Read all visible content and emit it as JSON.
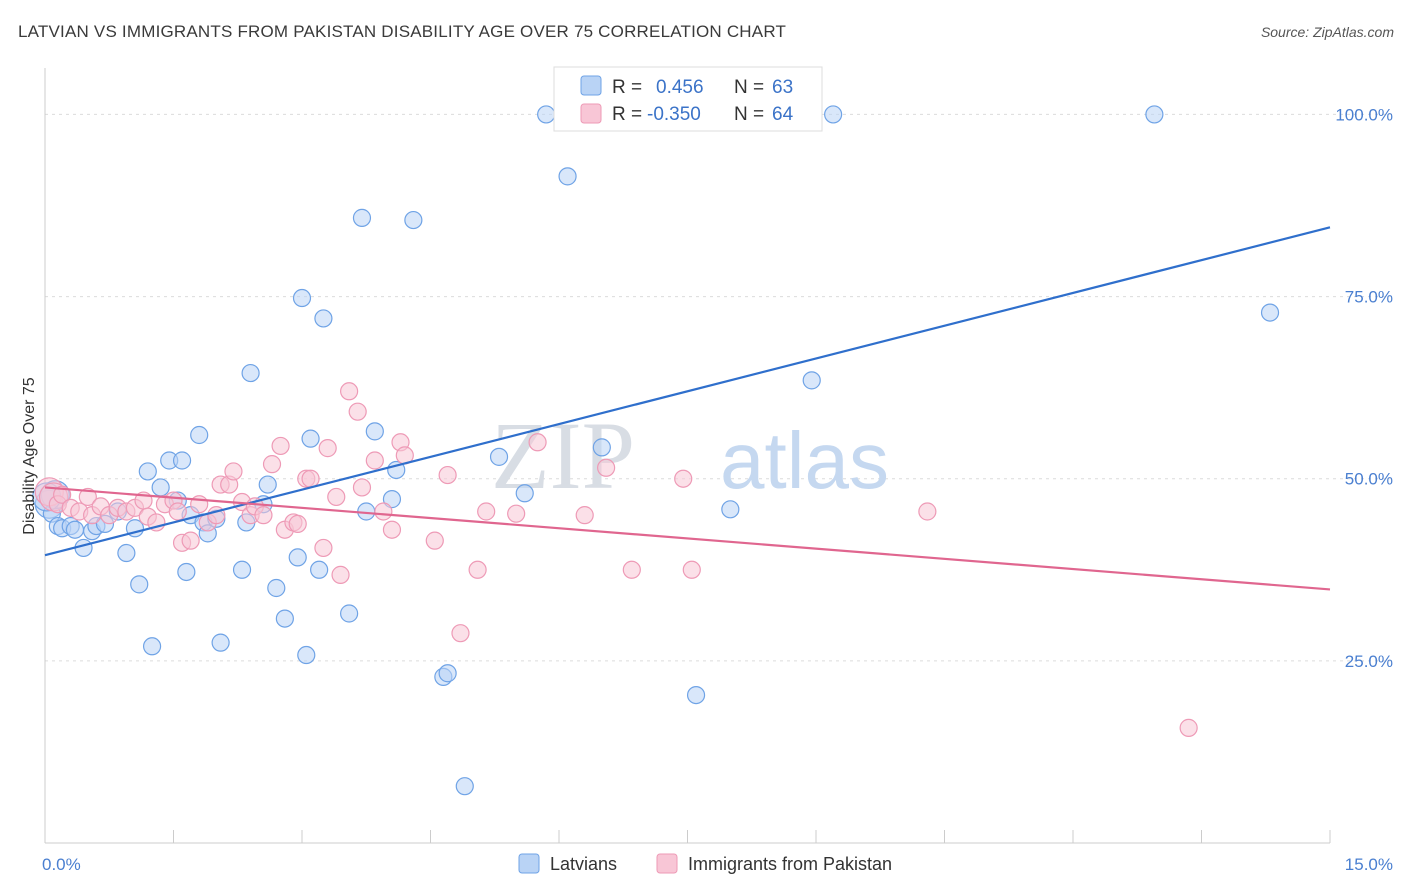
{
  "title": "LATVIAN VS IMMIGRANTS FROM PAKISTAN DISABILITY AGE OVER 75 CORRELATION CHART",
  "source": "Source: ZipAtlas.com",
  "watermark": {
    "zip": "ZIP",
    "atlas": "atlas"
  },
  "chart_data": {
    "type": "scatter",
    "ylabel": "Disability Age Over 75",
    "xlim": [
      0,
      15
    ],
    "ylim": [
      0,
      105
    ],
    "x_tick_labels": [
      {
        "value": 0,
        "label": "0.0%"
      },
      {
        "value": 15,
        "label": "15.0%"
      }
    ],
    "y_tick_labels": [
      {
        "value": 25,
        "label": "25.0%"
      },
      {
        "value": 50,
        "label": "50.0%"
      },
      {
        "value": 75,
        "label": "75.0%"
      },
      {
        "value": 100,
        "label": "100.0%"
      }
    ],
    "grid": "horizontal dashed",
    "legend": {
      "placement": "top-center",
      "entries": [
        {
          "r_label": "R =",
          "r_value": "0.456",
          "n_label": "N =",
          "n_value": "63"
        },
        {
          "r_label": "R =",
          "r_value": "-0.350",
          "n_label": "N =",
          "n_value": "64"
        }
      ]
    },
    "series": [
      {
        "name": "Latvians",
        "color": "#6fa3e6",
        "fill": "#b9d3f5",
        "trend": {
          "x": [
            0,
            15
          ],
          "y": [
            39.5,
            84.5
          ],
          "color": "#2f6fcc"
        },
        "points": [
          [
            0.05,
            46.5
          ],
          [
            0.08,
            45.2
          ],
          [
            0.12,
            47.8
          ],
          [
            0.15,
            43.5
          ],
          [
            0.2,
            43.2
          ],
          [
            0.3,
            43.5
          ],
          [
            0.35,
            43.0
          ],
          [
            0.45,
            40.5
          ],
          [
            0.55,
            42.8
          ],
          [
            0.6,
            43.5
          ],
          [
            0.7,
            43.8
          ],
          [
            0.85,
            45.5
          ],
          [
            0.95,
            39.8
          ],
          [
            1.05,
            43.2
          ],
          [
            1.1,
            35.5
          ],
          [
            1.2,
            51.0
          ],
          [
            1.25,
            27.0
          ],
          [
            1.35,
            48.8
          ],
          [
            1.45,
            52.5
          ],
          [
            1.55,
            47.0
          ],
          [
            1.6,
            52.5
          ],
          [
            1.65,
            37.2
          ],
          [
            1.7,
            45.0
          ],
          [
            1.8,
            56.0
          ],
          [
            1.85,
            44.0
          ],
          [
            1.9,
            42.5
          ],
          [
            2.0,
            44.5
          ],
          [
            2.05,
            27.5
          ],
          [
            2.3,
            37.5
          ],
          [
            2.35,
            44.0
          ],
          [
            2.4,
            64.5
          ],
          [
            2.55,
            46.5
          ],
          [
            2.6,
            49.2
          ],
          [
            2.7,
            35.0
          ],
          [
            2.8,
            30.8
          ],
          [
            2.95,
            39.2
          ],
          [
            3.0,
            74.8
          ],
          [
            3.05,
            25.8
          ],
          [
            3.1,
            55.5
          ],
          [
            3.2,
            37.5
          ],
          [
            3.25,
            72.0
          ],
          [
            3.55,
            31.5
          ],
          [
            3.7,
            85.8
          ],
          [
            3.75,
            45.5
          ],
          [
            3.85,
            56.5
          ],
          [
            4.05,
            47.2
          ],
          [
            4.1,
            51.2
          ],
          [
            4.3,
            85.5
          ],
          [
            4.65,
            22.8
          ],
          [
            4.7,
            23.3
          ],
          [
            4.9,
            7.8
          ],
          [
            5.3,
            53.0
          ],
          [
            5.6,
            48.0
          ],
          [
            5.85,
            100.0
          ],
          [
            6.1,
            91.5
          ],
          [
            6.5,
            54.3
          ],
          [
            7.6,
            20.3
          ],
          [
            8.0,
            45.8
          ],
          [
            8.95,
            63.5
          ],
          [
            9.2,
            100.0
          ],
          [
            12.95,
            100.0
          ],
          [
            14.3,
            72.8
          ],
          [
            0.02,
            47.5
          ]
        ]
      },
      {
        "name": "Immigrants from Pakistan",
        "color": "#ee9ab6",
        "fill": "#f8c6d6",
        "trend": {
          "x": [
            0,
            15
          ],
          "y": [
            48.8,
            34.8
          ],
          "color": "#e0668f"
        },
        "points": [
          [
            0.05,
            48.2
          ],
          [
            0.1,
            47.5
          ],
          [
            0.15,
            46.5
          ],
          [
            0.2,
            47.8
          ],
          [
            0.3,
            46.0
          ],
          [
            0.4,
            45.5
          ],
          [
            0.5,
            47.5
          ],
          [
            0.55,
            45.0
          ],
          [
            0.65,
            46.2
          ],
          [
            0.75,
            45.0
          ],
          [
            0.85,
            46.0
          ],
          [
            0.95,
            45.5
          ],
          [
            1.05,
            46.0
          ],
          [
            1.15,
            47.0
          ],
          [
            1.2,
            44.8
          ],
          [
            1.3,
            44.0
          ],
          [
            1.4,
            46.5
          ],
          [
            1.5,
            47.0
          ],
          [
            1.55,
            45.5
          ],
          [
            1.6,
            41.2
          ],
          [
            1.7,
            41.5
          ],
          [
            1.8,
            46.5
          ],
          [
            1.9,
            44.0
          ],
          [
            2.0,
            45.0
          ],
          [
            2.05,
            49.2
          ],
          [
            2.15,
            49.2
          ],
          [
            2.2,
            51.0
          ],
          [
            2.3,
            46.8
          ],
          [
            2.4,
            45.0
          ],
          [
            2.45,
            46.2
          ],
          [
            2.55,
            45.0
          ],
          [
            2.65,
            52.0
          ],
          [
            2.75,
            54.5
          ],
          [
            2.8,
            43.0
          ],
          [
            2.9,
            44.0
          ],
          [
            2.95,
            43.8
          ],
          [
            3.05,
            50.0
          ],
          [
            3.1,
            50.0
          ],
          [
            3.25,
            40.5
          ],
          [
            3.3,
            54.2
          ],
          [
            3.4,
            47.5
          ],
          [
            3.45,
            36.8
          ],
          [
            3.55,
            62.0
          ],
          [
            3.65,
            59.2
          ],
          [
            3.7,
            48.8
          ],
          [
            3.85,
            52.5
          ],
          [
            3.95,
            45.5
          ],
          [
            4.05,
            43.0
          ],
          [
            4.15,
            55.0
          ],
          [
            4.2,
            53.2
          ],
          [
            4.55,
            41.5
          ],
          [
            4.7,
            50.5
          ],
          [
            4.85,
            28.8
          ],
          [
            5.05,
            37.5
          ],
          [
            5.15,
            45.5
          ],
          [
            5.5,
            45.2
          ],
          [
            5.75,
            55.0
          ],
          [
            6.3,
            45.0
          ],
          [
            6.55,
            51.5
          ],
          [
            6.85,
            37.5
          ],
          [
            7.45,
            50.0
          ],
          [
            7.55,
            37.5
          ],
          [
            10.3,
            45.5
          ],
          [
            13.35,
            15.8
          ]
        ]
      }
    ]
  }
}
